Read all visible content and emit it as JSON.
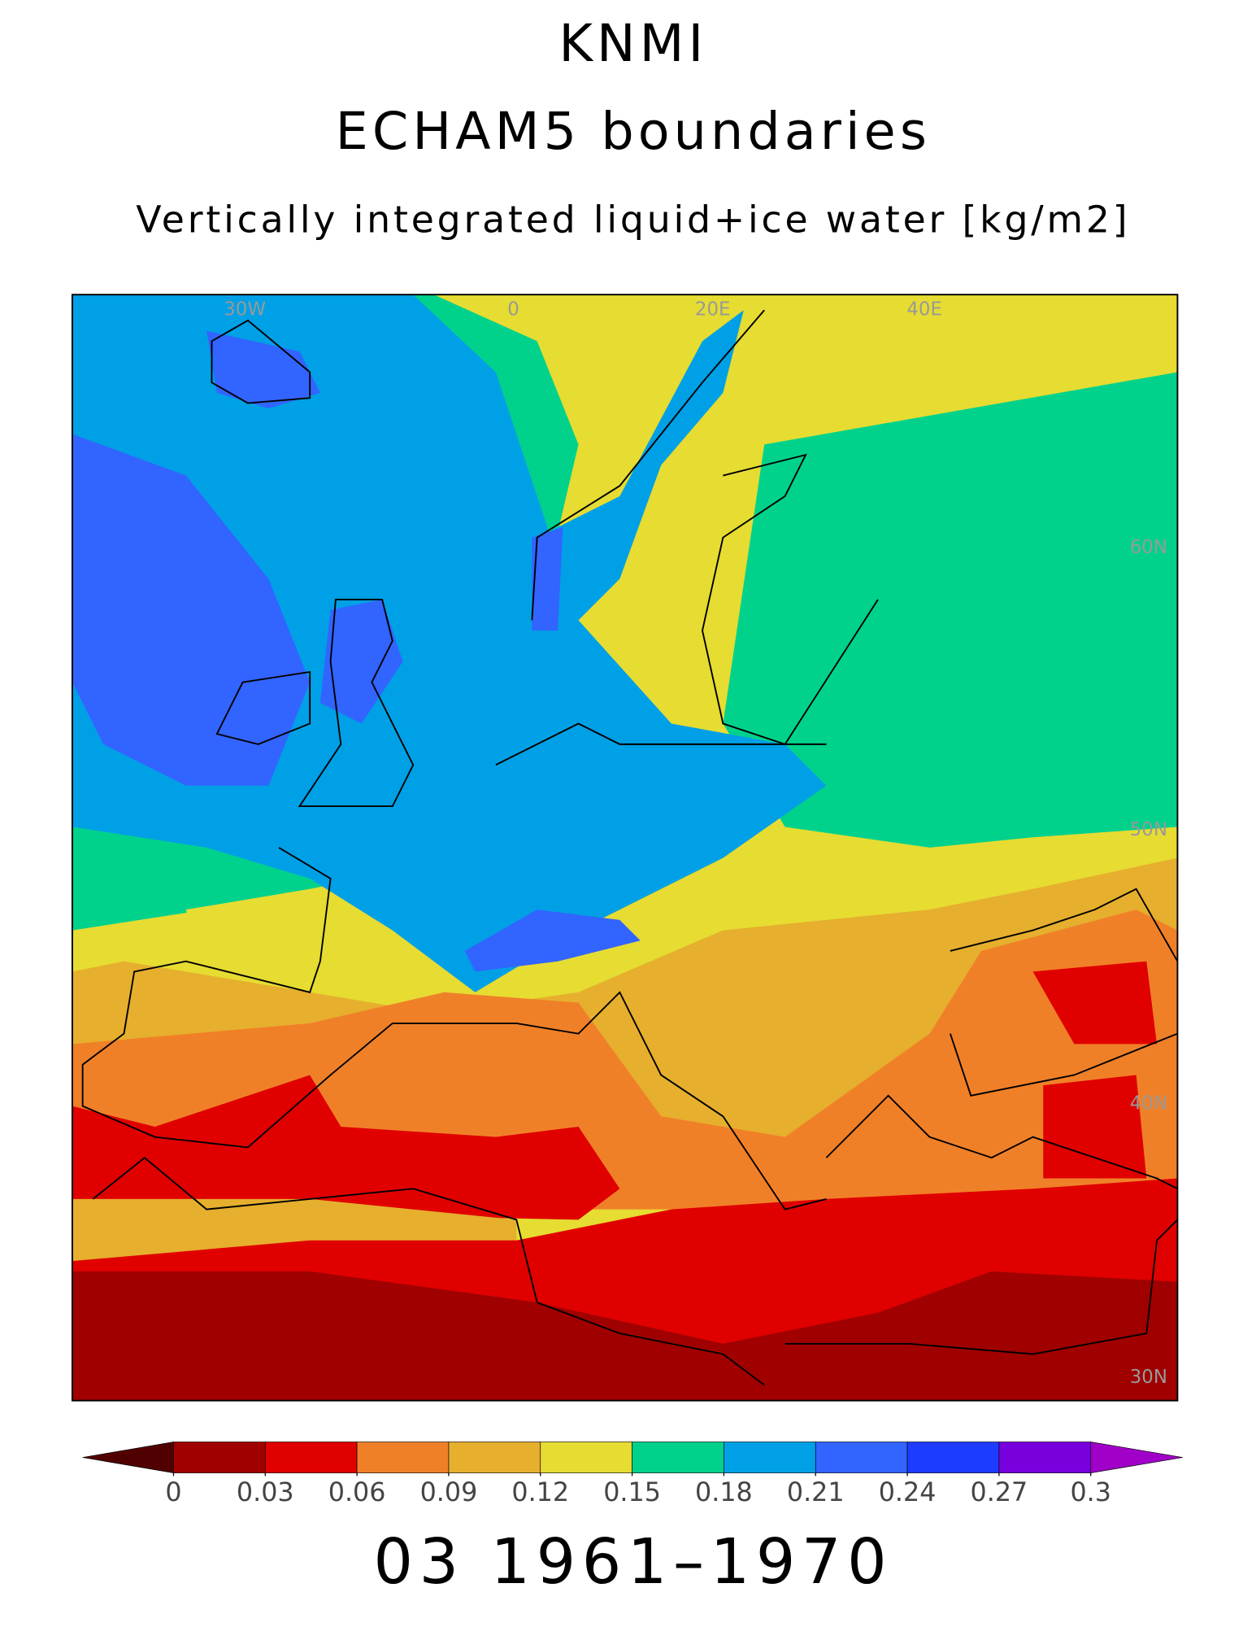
{
  "header": {
    "title": "KNMI",
    "subtitle": "ECHAM5 boundaries",
    "variable": "Vertically integrated liquid+ice water [kg/m2]"
  },
  "map": {
    "grid_labels": [
      "30W",
      "0",
      "20E",
      "40E",
      "60N",
      "50N",
      "40N",
      "30N"
    ]
  },
  "colorbar": {
    "ticks": [
      0,
      0.03,
      0.06,
      0.09,
      0.12,
      0.15,
      0.18,
      0.21,
      0.24,
      0.27,
      0.3
    ],
    "colors": [
      "#a00000",
      "#e00000",
      "#f08028",
      "#e6af2d",
      "#e6dc32",
      "#00d28c",
      "#00a0e6",
      "#3264ff",
      "#1e3cff",
      "#7800dc"
    ],
    "under_color": "#500000",
    "over_color": "#a000c8"
  },
  "footer": "03 1961–1970"
}
